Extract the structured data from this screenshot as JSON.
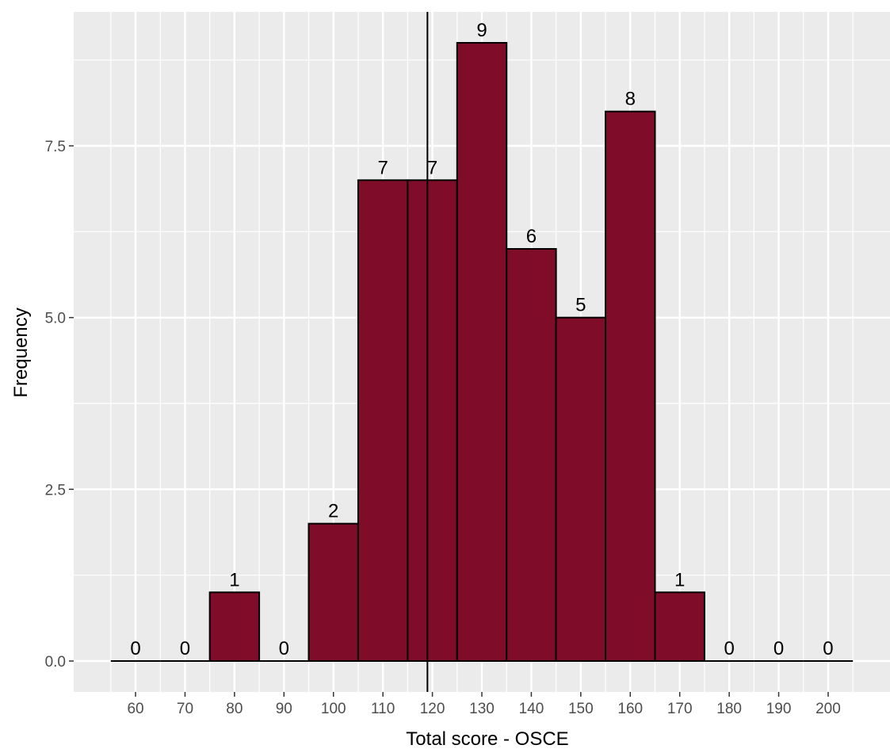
{
  "chart_data": {
    "type": "bar",
    "title": "",
    "xlabel": "Total score - OSCE",
    "ylabel": "Frequency",
    "bins": [
      {
        "center": 60,
        "count": 0,
        "label": "0"
      },
      {
        "center": 70,
        "count": 0,
        "label": "0"
      },
      {
        "center": 80,
        "count": 1,
        "label": "1"
      },
      {
        "center": 90,
        "count": 0,
        "label": "0"
      },
      {
        "center": 100,
        "count": 2,
        "label": "2"
      },
      {
        "center": 110,
        "count": 7,
        "label": "7"
      },
      {
        "center": 120,
        "count": 7,
        "label": "7"
      },
      {
        "center": 130,
        "count": 9,
        "label": "9"
      },
      {
        "center": 140,
        "count": 6,
        "label": "6"
      },
      {
        "center": 150,
        "count": 5,
        "label": "5"
      },
      {
        "center": 160,
        "count": 8,
        "label": "8"
      },
      {
        "center": 170,
        "count": 1,
        "label": "1"
      },
      {
        "center": 180,
        "count": 0,
        "label": "0"
      },
      {
        "center": 190,
        "count": 0,
        "label": "0"
      },
      {
        "center": 200,
        "count": 0,
        "label": "0"
      }
    ],
    "bin_width": 10,
    "x_ticks": [
      {
        "value": 60,
        "label": "60"
      },
      {
        "value": 70,
        "label": "70"
      },
      {
        "value": 80,
        "label": "80"
      },
      {
        "value": 90,
        "label": "90"
      },
      {
        "value": 100,
        "label": "100"
      },
      {
        "value": 110,
        "label": "110"
      },
      {
        "value": 120,
        "label": "120"
      },
      {
        "value": 130,
        "label": "130"
      },
      {
        "value": 140,
        "label": "140"
      },
      {
        "value": 150,
        "label": "150"
      },
      {
        "value": 160,
        "label": "160"
      },
      {
        "value": 170,
        "label": "170"
      },
      {
        "value": 180,
        "label": "180"
      },
      {
        "value": 190,
        "label": "190"
      },
      {
        "value": 200,
        "label": "200"
      }
    ],
    "y_ticks": [
      {
        "value": 0,
        "label": "0.0"
      },
      {
        "value": 2.5,
        "label": "2.5"
      },
      {
        "value": 5,
        "label": "5.0"
      },
      {
        "value": 7.5,
        "label": "7.5"
      }
    ],
    "xlim": [
      47.5,
      212.5
    ],
    "ylim": [
      -0.45,
      9.45
    ],
    "vline_x": 119,
    "grid": true,
    "colors": {
      "bar_fill": "#7f0c28",
      "bar_outline": "#000000",
      "panel_background": "#ebebeb",
      "grid_major": "#ffffff",
      "reference_line": "#000000"
    }
  }
}
